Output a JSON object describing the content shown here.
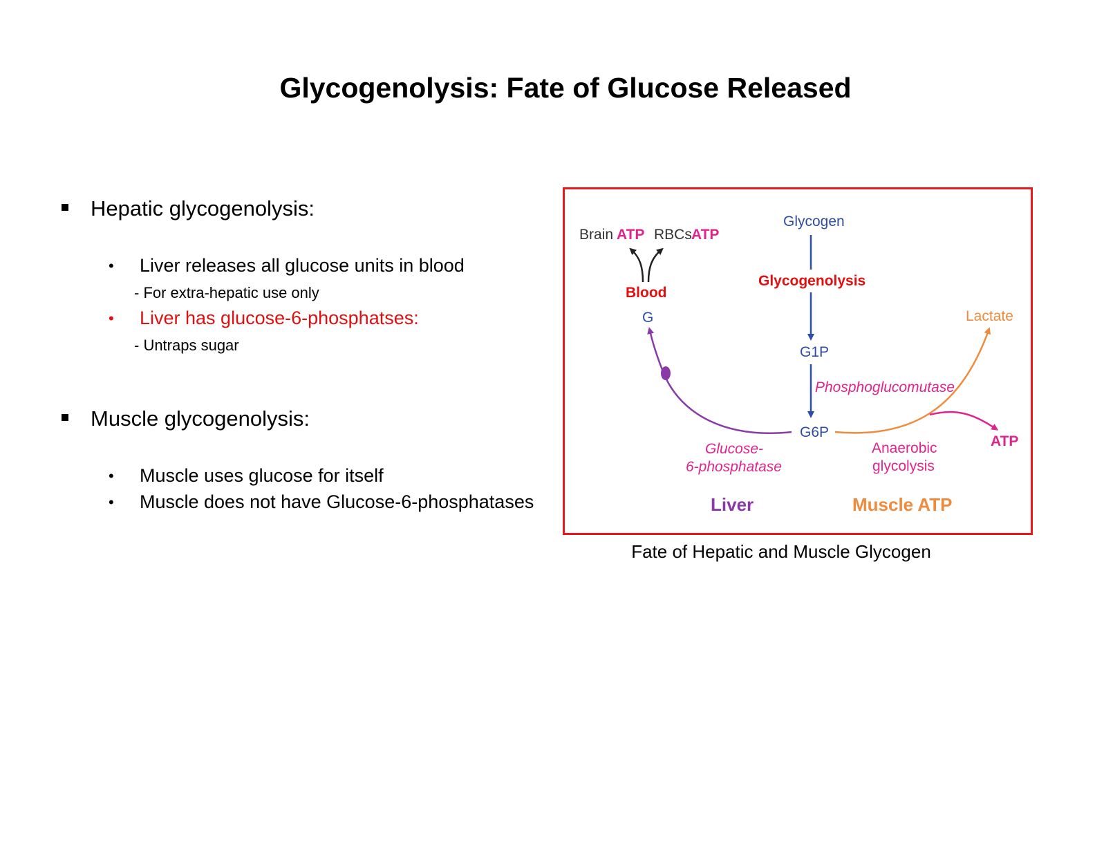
{
  "slide": {
    "title": "Glycogenolysis: Fate of Glucose Released"
  },
  "hepatic": {
    "heading": "Hepatic glycogenolysis:",
    "point1": "Liver releases all glucose units in blood",
    "point1_sub": "- For extra-hepatic use only",
    "point2": "Liver has glucose-6-phosphatses:",
    "point2_sub": "- Untraps sugar"
  },
  "muscle": {
    "heading": "Muscle glycogenolysis:",
    "point1": "Muscle uses glucose for itself",
    "point2": "Muscle does not have Glucose-6-phosphatases"
  },
  "figure": {
    "brain": "Brain",
    "atp": "ATP",
    "rbcs": "RBCs",
    "blood": "Blood",
    "g": "G",
    "glycogen": "Glycogen",
    "glycogenolysis": "Glycogenolysis",
    "g1p": "G1P",
    "phosphoglucomutase": "Phosphoglucomutase",
    "g6p": "G6P",
    "glucose_line1": "Glucose-",
    "glucose_line2": "6-phosphatase",
    "lactate": "Lactate",
    "anaerobic_line1": "Anaerobic",
    "anaerobic_line2": "glycolysis",
    "liver": "Liver",
    "muscle_atp": "Muscle ATP",
    "caption": "Fate of Hepatic and Muscle Glycogen"
  },
  "colors": {
    "red": "#e01010",
    "border": "#e8191c",
    "magenta": "#e0248e",
    "blue": "#2e4da3",
    "purple": "#8a3aa8",
    "orange": "#f08a3c"
  }
}
